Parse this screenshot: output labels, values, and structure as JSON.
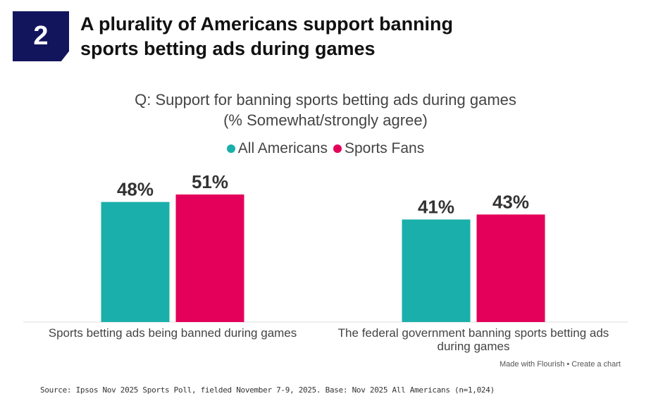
{
  "header": {
    "badge_number": "2",
    "headline": "A plurality of Americans support banning sports betting ads during games"
  },
  "chart_data": {
    "type": "bar",
    "title": "Q: Support for banning sports betting ads during games",
    "subtitle": "(% Somewhat/strongly agree)",
    "categories": [
      "Sports betting ads being banned during games",
      "The federal government banning sports betting ads during games"
    ],
    "series": [
      {
        "name": "All Americans",
        "color": "#1aafaa",
        "values": [
          48,
          41
        ],
        "labels": [
          "48%",
          "41%"
        ]
      },
      {
        "name": "Sports Fans",
        "color": "#e4005a",
        "values": [
          51,
          43
        ],
        "labels": [
          "51%",
          "43%"
        ]
      }
    ],
    "ylim": [
      0,
      51
    ],
    "xlabel": "",
    "ylabel": "",
    "grid": false,
    "legend_position": "top-center"
  },
  "footer": {
    "credit": "Made with Flourish • Create a chart",
    "source": "Source: Ipsos Nov 2025 Sports Poll, fielded November 7-9, 2025. Base: Nov 2025 All Americans (n=1,024)"
  }
}
